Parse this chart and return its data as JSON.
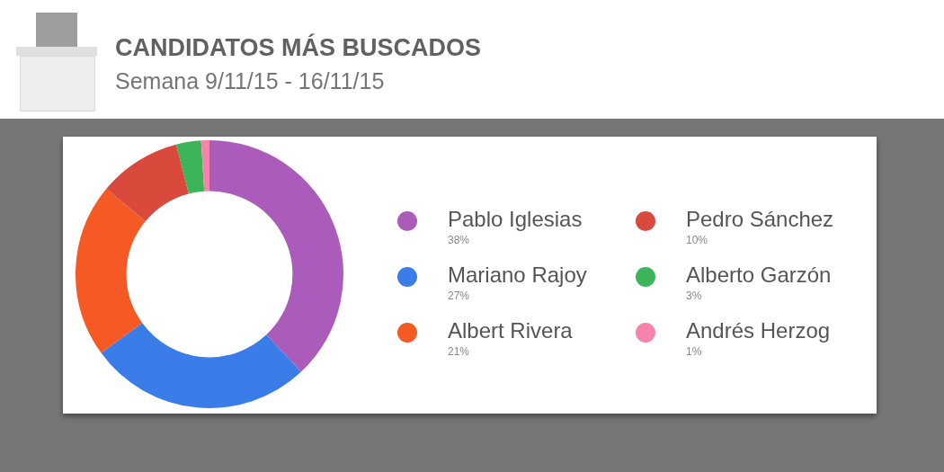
{
  "chart_data": {
    "type": "donut",
    "title": "CANDIDATOS MÁS BUSCADOS",
    "subtitle": "Semana 9/11/15 - 16/11/15",
    "categories": [
      "Pablo Iglesias",
      "Mariano Rajoy",
      "Albert Rivera",
      "Pedro Sánchez",
      "Alberto Garzón",
      "Andrés Herzog"
    ],
    "values": [
      38,
      27,
      21,
      10,
      3,
      1
    ],
    "colors": [
      "#ab5cba",
      "#3b7de8",
      "#f55a25",
      "#d9493c",
      "#3cb55a",
      "#f484ab"
    ],
    "value_labels": [
      "38%",
      "27%",
      "21%",
      "10%",
      "3%",
      "1%"
    ],
    "legend": "right"
  }
}
